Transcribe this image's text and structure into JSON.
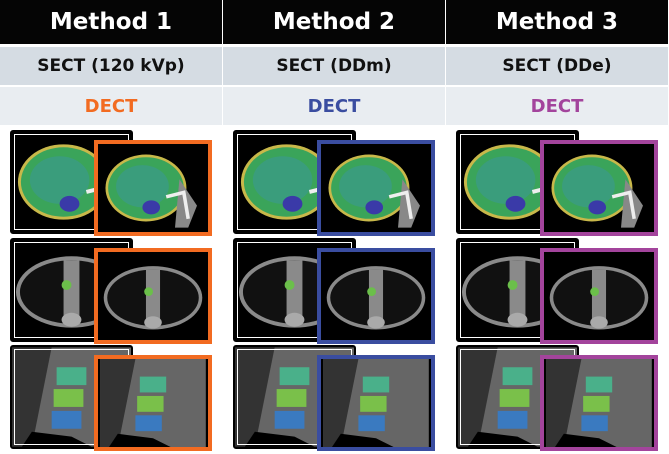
{
  "columns": [
    {
      "title": "Method 1",
      "sect": "SECT (120 kVp)",
      "dect": "DECT",
      "color": "#f26b21"
    },
    {
      "title": "Method 2",
      "sect": "SECT (DDm)",
      "dect": "DECT",
      "color": "#3a4da0"
    },
    {
      "title": "Method 3",
      "sect": "SECT (DDe)",
      "dect": "DECT",
      "color": "#a3449c"
    }
  ],
  "rows": [
    "head",
    "thorax",
    "spine"
  ]
}
